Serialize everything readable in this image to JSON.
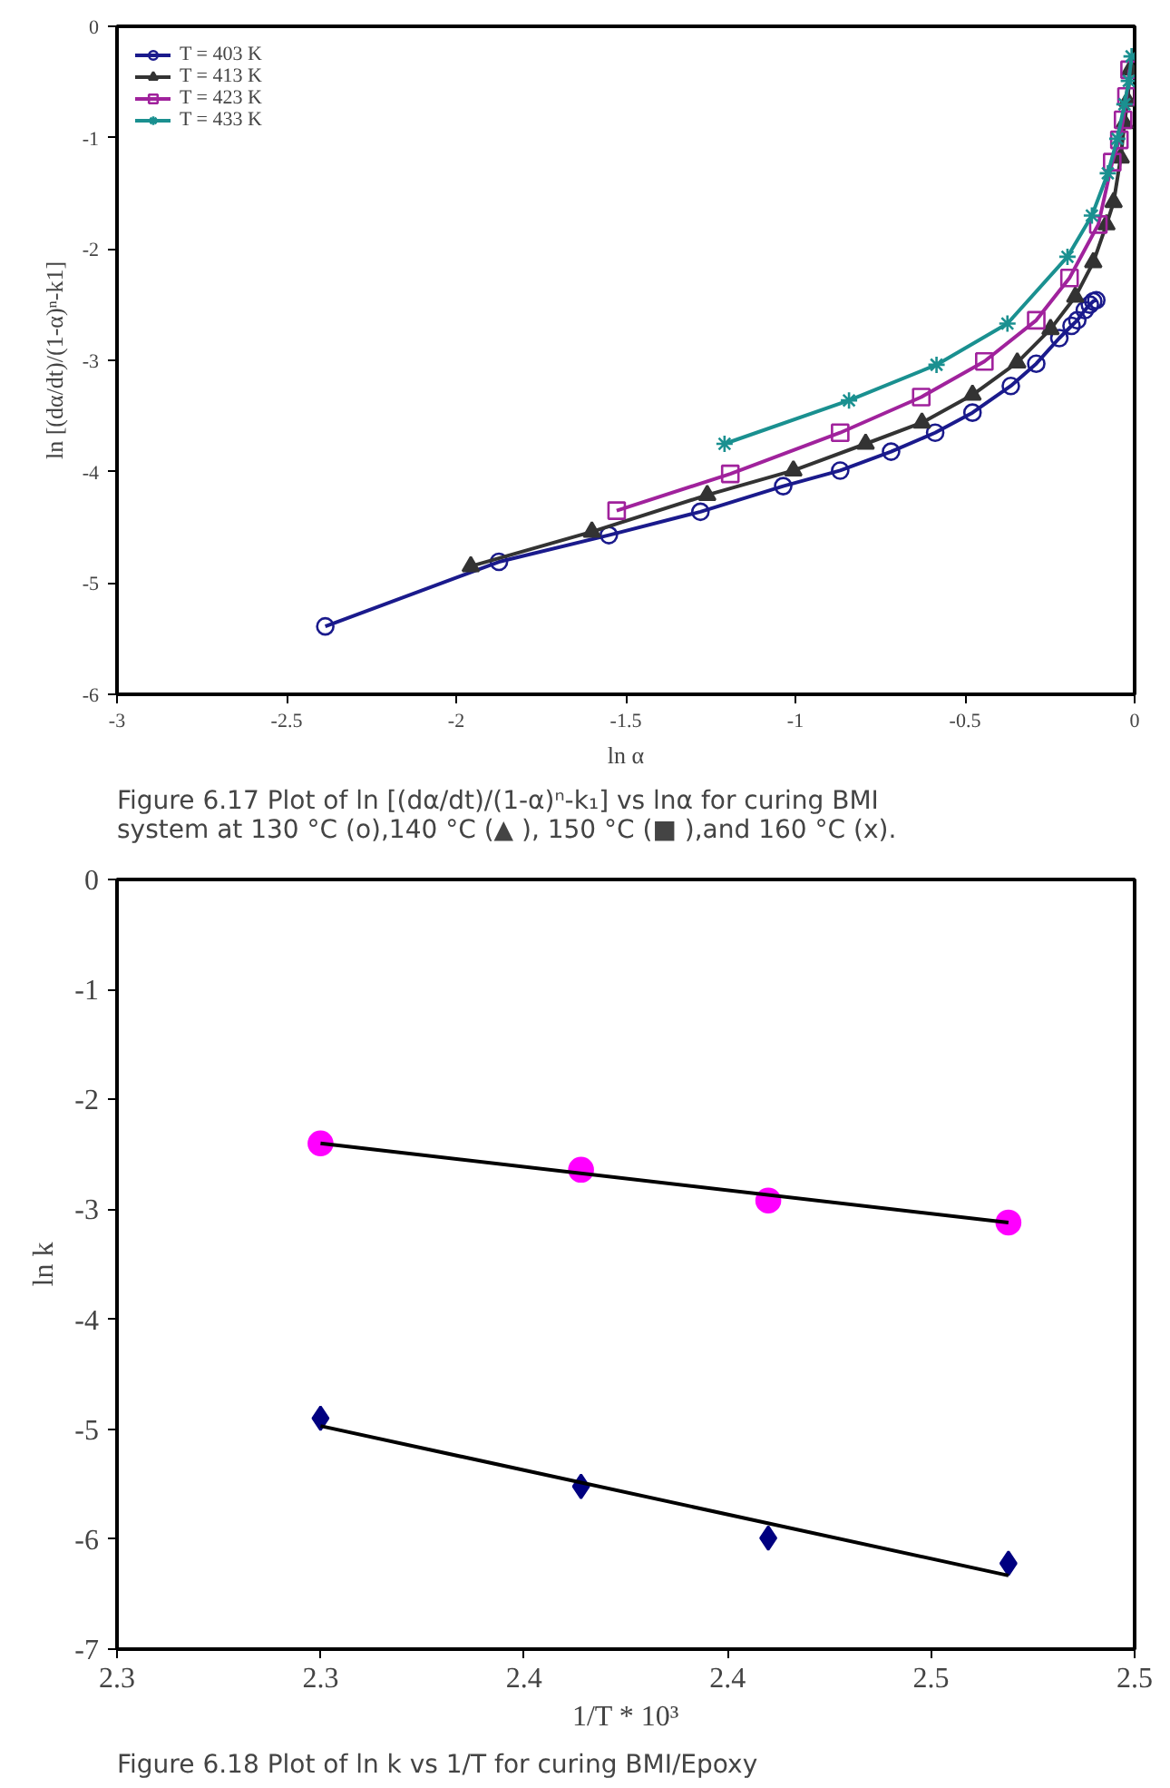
{
  "chart_data": [
    {
      "type": "line",
      "xlabel": "ln α",
      "ylabel": "ln [(dα/dt)/(1-α)ⁿ-k1]",
      "xlim": [
        -3,
        0
      ],
      "ylim": [
        -6,
        0
      ],
      "xticks": [
        -3,
        -2.5,
        -2,
        -1.5,
        -1,
        -0.5,
        0
      ],
      "yticks": [
        -6,
        -5,
        -4,
        -3,
        -2,
        -1,
        0
      ],
      "grid": false,
      "legend": "top left",
      "line_style": "solid",
      "annotations": [
        "Figure 6.17 Plot of ln [(dα/dt)/(1-α)ⁿ-k₁] vs lnα for curing BMI system at 130 °C (o),140 °C (▲ ), 150 °C (■ ),and 160 °C (x)."
      ],
      "series": [
        {
          "name": "T = 403 K",
          "color": "#1a1a8c",
          "marker": "circle",
          "x": [
            -2.386,
            -1.874,
            -1.55,
            -1.28,
            -1.036,
            -0.868,
            -0.718,
            -0.588,
            -0.478,
            -0.365,
            -0.29,
            -0.222,
            -0.186,
            -0.169,
            -0.147,
            -0.132,
            -0.122,
            -0.113
          ],
          "values": [
            -5.39,
            -4.81,
            -4.57,
            -4.36,
            -4.13,
            -3.99,
            -3.82,
            -3.65,
            -3.47,
            -3.23,
            -3.03,
            -2.8,
            -2.69,
            -2.64,
            -2.55,
            -2.5,
            -2.47,
            -2.46
          ]
        },
        {
          "name": "T = 413 K",
          "color": "#333333",
          "marker": "triangle",
          "x": [
            -1.957,
            -1.6,
            -1.26,
            -1.006,
            -0.793,
            -0.627,
            -0.478,
            -0.346,
            -0.248,
            -0.175,
            -0.122,
            -0.083,
            -0.062,
            -0.041,
            -0.03,
            -0.021,
            -0.013
          ],
          "values": [
            -4.85,
            -4.54,
            -4.21,
            -3.99,
            -3.75,
            -3.56,
            -3.31,
            -3.02,
            -2.72,
            -2.43,
            -2.12,
            -1.78,
            -1.58,
            -1.18,
            -0.87,
            -0.67,
            -0.39
          ]
        },
        {
          "name": "T = 423 K",
          "color": "#a0229c",
          "marker": "square",
          "x": [
            -1.527,
            -1.192,
            -0.868,
            -0.629,
            -0.443,
            -0.29,
            -0.192,
            -0.107,
            -0.066,
            -0.045,
            -0.034,
            -0.024,
            -0.015
          ],
          "values": [
            -4.35,
            -4.02,
            -3.65,
            -3.33,
            -3.01,
            -2.64,
            -2.26,
            -1.78,
            -1.22,
            -1.02,
            -0.84,
            -0.63,
            -0.39
          ]
        },
        {
          "name": "T = 433 K",
          "color": "#1a9090",
          "marker": "cross",
          "x": [
            -1.209,
            -0.842,
            -0.584,
            -0.375,
            -0.198,
            -0.126,
            -0.079,
            -0.051,
            -0.03,
            -0.017,
            -0.009
          ],
          "values": [
            -3.75,
            -3.36,
            -3.04,
            -2.67,
            -2.07,
            -1.7,
            -1.32,
            -1.01,
            -0.7,
            -0.49,
            -0.27
          ]
        }
      ]
    },
    {
      "type": "scatter",
      "xlabel": "1/T * 10³",
      "ylabel": "ln k",
      "xlim": [
        2.25,
        2.5
      ],
      "ylim": [
        -7,
        0
      ],
      "xticks": [
        {
          "value": 2.25,
          "label": "2.3"
        },
        {
          "value": 2.3,
          "label": "2.3"
        },
        {
          "value": 2.35,
          "label": "2.4"
        },
        {
          "value": 2.4,
          "label": "2.4"
        },
        {
          "value": 2.45,
          "label": "2.5"
        },
        {
          "value": 2.5,
          "label": "2.5"
        }
      ],
      "yticks": [
        -7,
        -6,
        -5,
        -4,
        -3,
        -2,
        -1,
        0
      ],
      "grid": false,
      "annotations": [
        "Figure 6.18    Plot of ln k vs 1/T for curing BMI/Epoxy"
      ],
      "series": [
        {
          "color": "#ff00ff",
          "marker": "circle",
          "x": [
            2.3,
            2.364,
            2.41,
            2.469
          ],
          "values": [
            -2.4,
            -2.64,
            -2.92,
            -3.12
          ]
        },
        {
          "color": "#000080",
          "marker": "diamond",
          "x": [
            2.3,
            2.364,
            2.41,
            2.469
          ],
          "values": [
            -4.9,
            -5.52,
            -5.99,
            -6.22
          ]
        },
        {
          "type": "line",
          "color": "#000000",
          "marker": "none",
          "x": [
            2.3,
            2.469
          ],
          "values": [
            -2.4,
            -3.12
          ]
        },
        {
          "type": "line",
          "color": "#000000",
          "marker": "none",
          "x": [
            2.3,
            2.469
          ],
          "values": [
            -4.97,
            -6.33
          ]
        }
      ]
    }
  ]
}
